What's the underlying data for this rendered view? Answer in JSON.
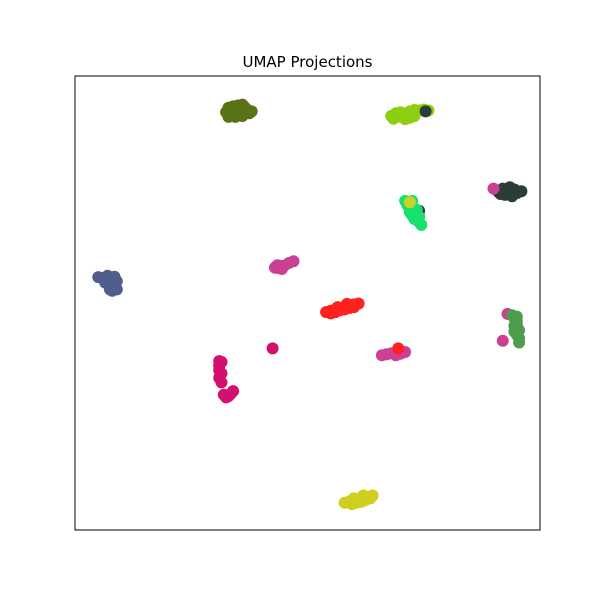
{
  "chart_data": {
    "type": "scatter",
    "title": "UMAP Projections",
    "xlabel": "",
    "ylabel": "",
    "xlim": [
      0,
      1
    ],
    "ylim": [
      0,
      1
    ],
    "ticks": "none",
    "grid": false,
    "legend": "none",
    "marker_style": "filled circles",
    "series": [
      {
        "color": "#5a7216",
        "points": [
          [
            0.33,
            0.93
          ],
          [
            0.34,
            0.933
          ],
          [
            0.345,
            0.927
          ],
          [
            0.35,
            0.935
          ],
          [
            0.355,
            0.928
          ],
          [
            0.36,
            0.937
          ],
          [
            0.365,
            0.931
          ],
          [
            0.37,
            0.926
          ],
          [
            0.34,
            0.92
          ],
          [
            0.35,
            0.918
          ],
          [
            0.36,
            0.922
          ],
          [
            0.335,
            0.915
          ],
          [
            0.345,
            0.91
          ],
          [
            0.36,
            0.912
          ],
          [
            0.375,
            0.918
          ],
          [
            0.38,
            0.922
          ],
          [
            0.33,
            0.91
          ],
          [
            0.325,
            0.92
          ]
        ]
      },
      {
        "color": "#8ccf10",
        "points": [
          [
            0.68,
            0.912
          ],
          [
            0.69,
            0.918
          ],
          [
            0.7,
            0.92
          ],
          [
            0.71,
            0.917
          ],
          [
            0.72,
            0.922
          ],
          [
            0.73,
            0.925
          ],
          [
            0.74,
            0.924
          ],
          [
            0.75,
            0.926
          ],
          [
            0.76,
            0.924
          ],
          [
            0.7,
            0.91
          ],
          [
            0.71,
            0.905
          ],
          [
            0.72,
            0.908
          ],
          [
            0.685,
            0.906
          ],
          [
            0.73,
            0.912
          ]
        ]
      },
      {
        "color": "#2b3d37",
        "points": [
          [
            0.754,
            0.922
          ],
          [
            0.72,
            0.708
          ],
          [
            0.74,
            0.703
          ],
          [
            0.91,
            0.745
          ],
          [
            0.92,
            0.752
          ],
          [
            0.93,
            0.748
          ],
          [
            0.94,
            0.74
          ],
          [
            0.945,
            0.75
          ],
          [
            0.95,
            0.742
          ],
          [
            0.935,
            0.755
          ],
          [
            0.96,
            0.746
          ],
          [
            0.925,
            0.738
          ],
          [
            0.915,
            0.74
          ],
          [
            0.94,
            0.735
          ]
        ]
      },
      {
        "color": "#18e070",
        "points": [
          [
            0.71,
            0.725
          ],
          [
            0.715,
            0.715
          ],
          [
            0.72,
            0.7
          ],
          [
            0.725,
            0.693
          ],
          [
            0.73,
            0.685
          ],
          [
            0.74,
            0.678
          ],
          [
            0.745,
            0.672
          ],
          [
            0.74,
            0.69
          ],
          [
            0.73,
            0.698
          ],
          [
            0.735,
            0.705
          ],
          [
            0.725,
            0.725
          ]
        ]
      },
      {
        "color": "#c8d228",
        "points": [
          [
            0.72,
            0.722
          ]
        ]
      },
      {
        "color": "#4f5e8c",
        "points": [
          [
            0.05,
            0.557
          ],
          [
            0.06,
            0.555
          ],
          [
            0.07,
            0.552
          ],
          [
            0.08,
            0.553
          ],
          [
            0.065,
            0.545
          ],
          [
            0.075,
            0.54
          ],
          [
            0.085,
            0.535
          ],
          [
            0.09,
            0.53
          ],
          [
            0.08,
            0.527
          ],
          [
            0.075,
            0.53
          ],
          [
            0.085,
            0.542
          ],
          [
            0.09,
            0.548
          ],
          [
            0.07,
            0.56
          ],
          [
            0.085,
            0.558
          ]
        ]
      },
      {
        "color": "#cc4094",
        "points": [
          [
            0.43,
            0.578
          ],
          [
            0.435,
            0.577
          ],
          [
            0.44,
            0.582
          ],
          [
            0.445,
            0.575
          ],
          [
            0.45,
            0.582
          ],
          [
            0.46,
            0.588
          ],
          [
            0.47,
            0.592
          ],
          [
            0.435,
            0.583
          ],
          [
            0.9,
            0.752
          ],
          [
            0.93,
            0.476
          ],
          [
            0.92,
            0.417
          ],
          [
            0.66,
            0.385
          ],
          [
            0.67,
            0.387
          ],
          [
            0.68,
            0.389
          ],
          [
            0.69,
            0.391
          ],
          [
            0.7,
            0.388
          ],
          [
            0.71,
            0.392
          ],
          [
            0.69,
            0.385
          ]
        ]
      },
      {
        "color": "#ff2020",
        "points": [
          [
            0.54,
            0.48
          ],
          [
            0.55,
            0.483
          ],
          [
            0.56,
            0.486
          ],
          [
            0.57,
            0.489
          ],
          [
            0.58,
            0.492
          ],
          [
            0.59,
            0.494
          ],
          [
            0.6,
            0.497
          ],
          [
            0.61,
            0.499
          ],
          [
            0.55,
            0.477
          ],
          [
            0.56,
            0.48
          ],
          [
            0.57,
            0.484
          ],
          [
            0.58,
            0.486
          ],
          [
            0.59,
            0.489
          ],
          [
            0.6,
            0.491
          ],
          [
            0.565,
            0.491
          ],
          [
            0.585,
            0.498
          ],
          [
            0.695,
            0.4
          ]
        ]
      },
      {
        "color": "#4e9c4e",
        "points": [
          [
            0.94,
            0.473
          ],
          [
            0.945,
            0.466
          ],
          [
            0.95,
            0.46
          ],
          [
            0.95,
            0.452
          ],
          [
            0.95,
            0.444
          ],
          [
            0.945,
            0.437
          ],
          [
            0.95,
            0.43
          ],
          [
            0.955,
            0.422
          ],
          [
            0.955,
            0.413
          ],
          [
            0.95,
            0.47
          ],
          [
            0.955,
            0.44
          ],
          [
            0.945,
            0.45
          ]
        ]
      },
      {
        "color": "#d4106e",
        "points": [
          [
            0.425,
            0.4
          ],
          [
            0.31,
            0.372
          ],
          [
            0.315,
            0.37
          ],
          [
            0.31,
            0.362
          ],
          [
            0.31,
            0.352
          ],
          [
            0.315,
            0.345
          ],
          [
            0.31,
            0.335
          ],
          [
            0.315,
            0.325
          ],
          [
            0.32,
            0.298
          ],
          [
            0.325,
            0.292
          ],
          [
            0.33,
            0.295
          ],
          [
            0.335,
            0.3
          ],
          [
            0.34,
            0.306
          ]
        ]
      },
      {
        "color": "#cfcf20",
        "points": [
          [
            0.58,
            0.06
          ],
          [
            0.59,
            0.063
          ],
          [
            0.6,
            0.066
          ],
          [
            0.61,
            0.068
          ],
          [
            0.62,
            0.07
          ],
          [
            0.63,
            0.073
          ],
          [
            0.64,
            0.076
          ],
          [
            0.595,
            0.057
          ],
          [
            0.605,
            0.06
          ],
          [
            0.615,
            0.062
          ],
          [
            0.625,
            0.066
          ],
          [
            0.635,
            0.07
          ],
          [
            0.6,
            0.07
          ],
          [
            0.62,
            0.076
          ]
        ]
      }
    ]
  }
}
